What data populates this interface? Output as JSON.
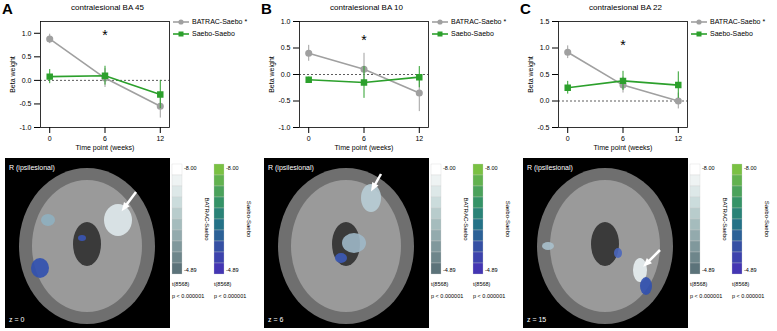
{
  "chart_data": [
    {
      "type": "line",
      "panel": "A",
      "title": "contralesional BA 45",
      "x_label": "Time point (weeks)",
      "y_label": "Beta weight",
      "x": [
        0,
        6,
        12
      ],
      "xlim": [
        -1,
        13
      ],
      "xticks": [
        0,
        6,
        12
      ],
      "ylim": [
        -1,
        1.25
      ],
      "yticks": [
        {
          "value": -1,
          "label": "-1.0"
        },
        {
          "value": -0.5,
          "label": "-0.5"
        },
        {
          "value": 0,
          "label": "0.0"
        },
        {
          "value": 0.5,
          "label": "0.5"
        },
        {
          "value": 1,
          "label": "1.0"
        }
      ],
      "reference_y": 0,
      "annotations": [
        {
          "x": 6,
          "y": 0.95,
          "text": "*"
        }
      ],
      "series": [
        {
          "name": "BATRAC-Saebo *",
          "color": "#a0a0a0",
          "marker": "circle",
          "values": [
            0.88,
            0.05,
            -0.55
          ],
          "errors": [
            0.1,
            0.2,
            0.25
          ]
        },
        {
          "name": "Saebo-Saebo",
          "color": "#2ca02c",
          "marker": "square",
          "values": [
            0.08,
            0.1,
            -0.3
          ],
          "errors": [
            0.15,
            0.2,
            0.3
          ]
        }
      ]
    },
    {
      "type": "line",
      "panel": "B",
      "title": "contralesional BA 10",
      "x_label": "Time point (weeks)",
      "y_label": "Beta weight",
      "x": [
        0,
        6,
        12
      ],
      "xlim": [
        -1,
        13
      ],
      "xticks": [
        0,
        6,
        12
      ],
      "ylim": [
        -1,
        1
      ],
      "yticks": [
        {
          "value": -1,
          "label": "-1.0"
        },
        {
          "value": -0.5,
          "label": "-0.5"
        },
        {
          "value": 0,
          "label": "0.0"
        },
        {
          "value": 0.5,
          "label": "0.5"
        },
        {
          "value": 1,
          "label": "1.0"
        }
      ],
      "reference_y": 0,
      "annotations": [
        {
          "x": 6,
          "y": 0.65,
          "text": "*"
        }
      ],
      "series": [
        {
          "name": "BATRAC-Saebo *",
          "color": "#a0a0a0",
          "marker": "circle",
          "values": [
            0.4,
            0.1,
            -0.35
          ],
          "errors": [
            0.15,
            0.3,
            0.35
          ]
        },
        {
          "name": "Saebo-Saebo",
          "color": "#2ca02c",
          "marker": "square",
          "values": [
            -0.1,
            -0.15,
            -0.05
          ],
          "errors": [
            0.05,
            0.3,
            0.2
          ]
        }
      ]
    },
    {
      "type": "line",
      "panel": "C",
      "title": "contralesional BA 22",
      "x_label": "Time point (weeks)",
      "y_label": "Beta weight",
      "x": [
        0,
        6,
        12
      ],
      "xlim": [
        -1,
        13
      ],
      "xticks": [
        0,
        6,
        12
      ],
      "ylim": [
        -0.5,
        1.5
      ],
      "yticks": [
        {
          "value": -0.5,
          "label": "-0.5"
        },
        {
          "value": 0,
          "label": "0.0"
        },
        {
          "value": 0.5,
          "label": "0.5"
        },
        {
          "value": 1,
          "label": "1.0"
        },
        {
          "value": 1.5,
          "label": "1.5"
        }
      ],
      "reference_y": 0,
      "annotations": [
        {
          "x": 6,
          "y": 1.05,
          "text": "*"
        }
      ],
      "series": [
        {
          "name": "BATRAC-Saebo *",
          "color": "#a0a0a0",
          "marker": "circle",
          "values": [
            0.92,
            0.3,
            0.0
          ],
          "errors": [
            0.12,
            0.15,
            0.15
          ]
        },
        {
          "name": "Saebo-Saebo",
          "color": "#2ca02c",
          "marker": "square",
          "values": [
            0.25,
            0.38,
            0.3
          ],
          "errors": [
            0.12,
            0.18,
            0.25
          ]
        }
      ]
    }
  ],
  "images": [
    {
      "panel": "A",
      "orientation_label": "R (ipsilesional)",
      "slice_label": "z = 0",
      "stat_label": "t(8568)",
      "p_label": "p < 0.000001",
      "colorbars": [
        {
          "name": "BATRAC-Saebo",
          "range": [
            -8,
            -4.89
          ],
          "range_labels": [
            "-8.00",
            "-4.89"
          ],
          "colors": [
            "#ffffff",
            "#eef3f3",
            "#dde8e8",
            "#cbdcdc",
            "#b8cccc",
            "#a5bcbd",
            "#93aaad",
            "#80989c",
            "#6e868b",
            "#5c737a"
          ]
        },
        {
          "name": "Saebo-Saebo",
          "range": [
            -8,
            -4.89
          ],
          "range_labels": [
            "-8.00",
            "-4.89"
          ],
          "colors": [
            "#7ac143",
            "#62b24f",
            "#4ba25b",
            "#359367",
            "#2a8377",
            "#247287",
            "#2c6197",
            "#3550a4",
            "#3d43ad",
            "#4436b3"
          ]
        }
      ]
    },
    {
      "panel": "B",
      "orientation_label": "R (ipsilesional)",
      "slice_label": "z = 6",
      "stat_label": "t(8568)",
      "p_label": "p < 0.000001",
      "colorbars": [
        {
          "name": "BATRAC-Saebo",
          "range": [
            -8,
            -4.89
          ],
          "range_labels": [
            "-8.00",
            "-4.89"
          ],
          "colors": [
            "#ffffff",
            "#eef3f3",
            "#dde8e8",
            "#cbdcdc",
            "#b8cccc",
            "#a5bcbd",
            "#93aaad",
            "#80989c",
            "#6e868b",
            "#5c737a"
          ]
        },
        {
          "name": "Saebo-Saebo",
          "range": [
            -8,
            -4.89
          ],
          "range_labels": [
            "-8.00",
            "-4.89"
          ],
          "colors": [
            "#7ac143",
            "#62b24f",
            "#4ba25b",
            "#359367",
            "#2a8377",
            "#247287",
            "#2c6197",
            "#3550a4",
            "#3d43ad",
            "#4436b3"
          ]
        }
      ]
    },
    {
      "panel": "C",
      "orientation_label": "R (ipsilesional)",
      "slice_label": "z = 15",
      "stat_label": "t(8568)",
      "p_label": "p < 0.000001",
      "colorbars": [
        {
          "name": "BATRAC-Saebo",
          "range": [
            -8,
            -4.89
          ],
          "range_labels": [
            "-8.00",
            "-4.89"
          ],
          "colors": [
            "#ffffff",
            "#eef3f3",
            "#dde8e8",
            "#cbdcdc",
            "#b8cccc",
            "#a5bcbd",
            "#93aaad",
            "#80989c",
            "#6e868b",
            "#5c737a"
          ]
        },
        {
          "name": "Saebo-Saebo",
          "range": [
            -8,
            -4.89
          ],
          "range_labels": [
            "-8.00",
            "-4.89"
          ],
          "colors": [
            "#7ac143",
            "#62b24f",
            "#4ba25b",
            "#359367",
            "#2a8377",
            "#247287",
            "#2c6197",
            "#3550a4",
            "#3d43ad",
            "#4436b3"
          ]
        }
      ]
    }
  ]
}
